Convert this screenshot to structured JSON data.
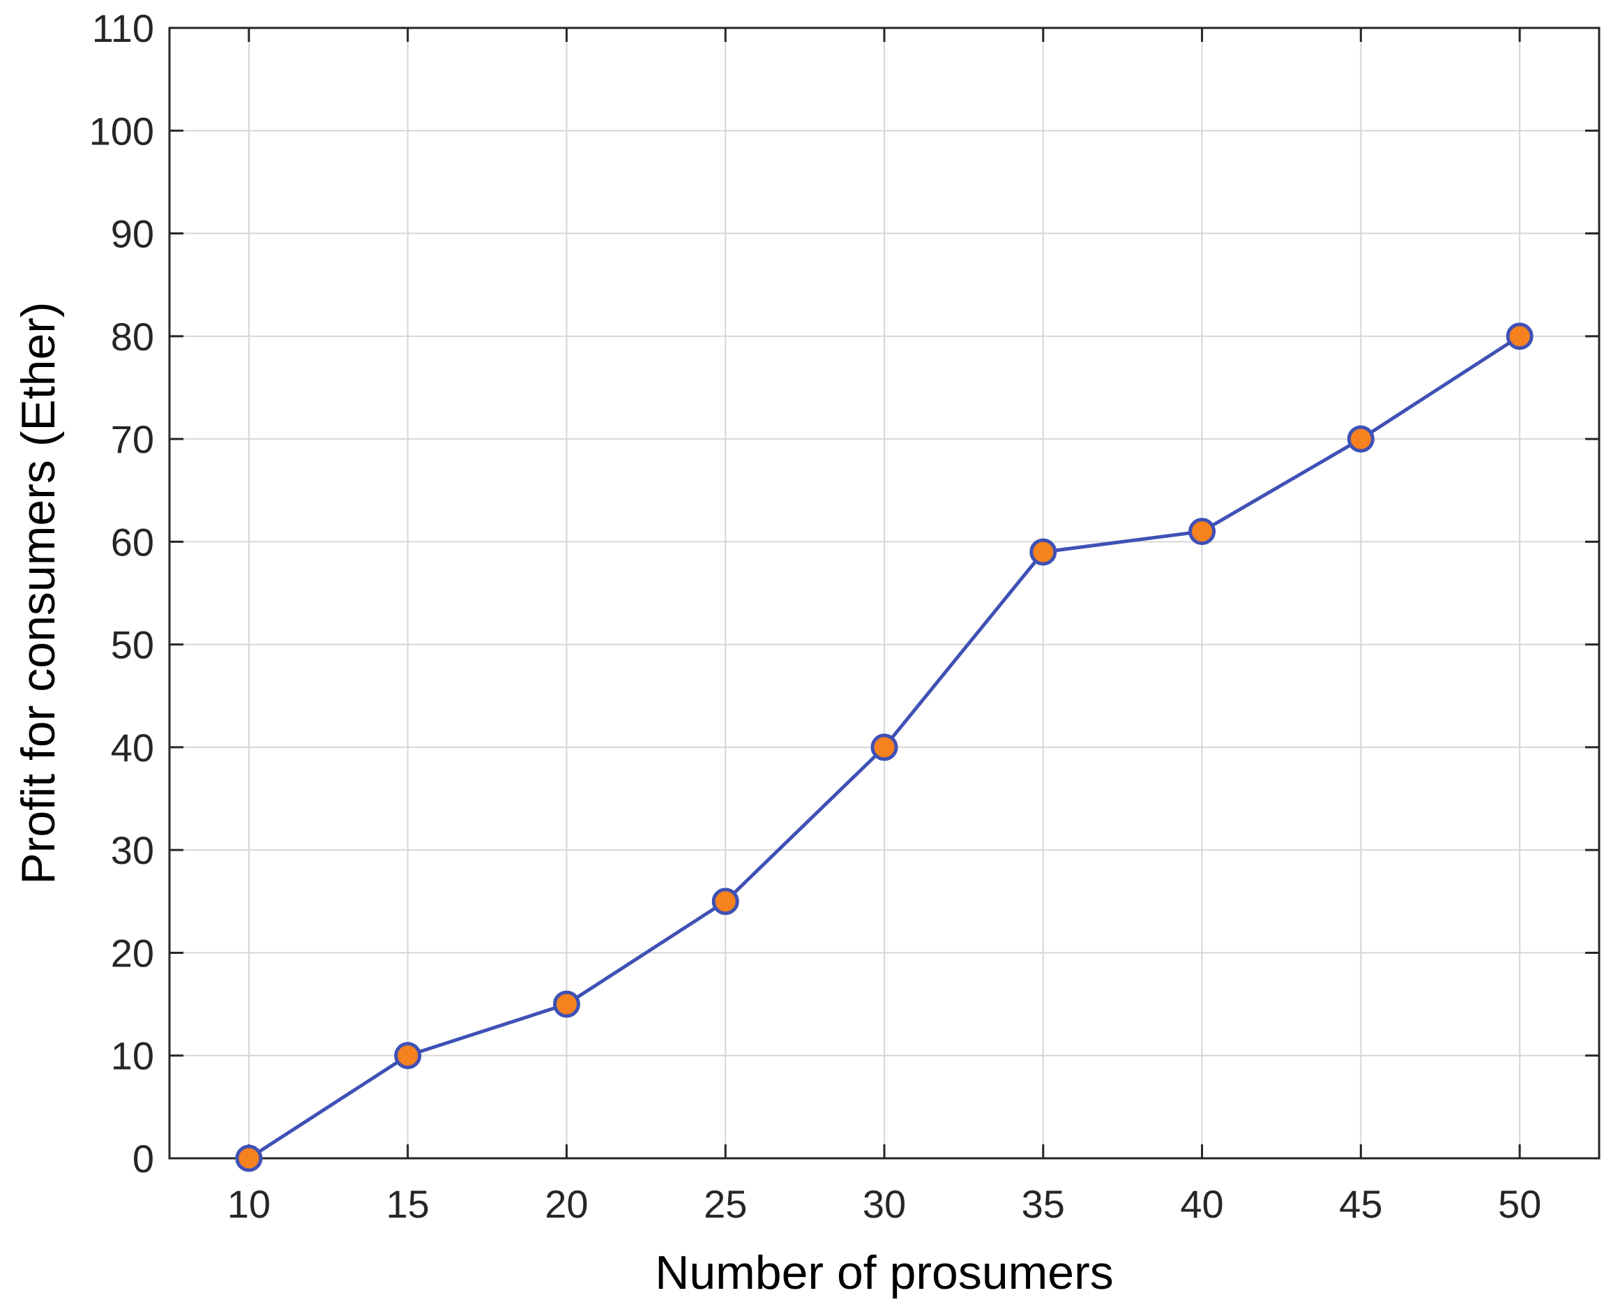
{
  "chart_data": {
    "type": "line",
    "xlabel": "Number of prosumers",
    "ylabel": "Profit for consumers (Ether)",
    "xlim": [
      7.5,
      52.5
    ],
    "ylim": [
      0,
      110
    ],
    "xticks": [
      10,
      15,
      20,
      25,
      30,
      35,
      40,
      45,
      50
    ],
    "yticks": [
      0,
      10,
      20,
      30,
      40,
      50,
      60,
      70,
      80,
      90,
      100,
      110
    ],
    "grid": true,
    "series": [
      {
        "x": [
          10,
          15,
          20,
          25,
          30,
          35,
          40,
          45,
          50
        ],
        "y": [
          0,
          10,
          15,
          25,
          40,
          59,
          61,
          70,
          80
        ],
        "line_color": "#3f51b5",
        "marker": "circle",
        "marker_fill": "#f5821f"
      }
    ]
  }
}
